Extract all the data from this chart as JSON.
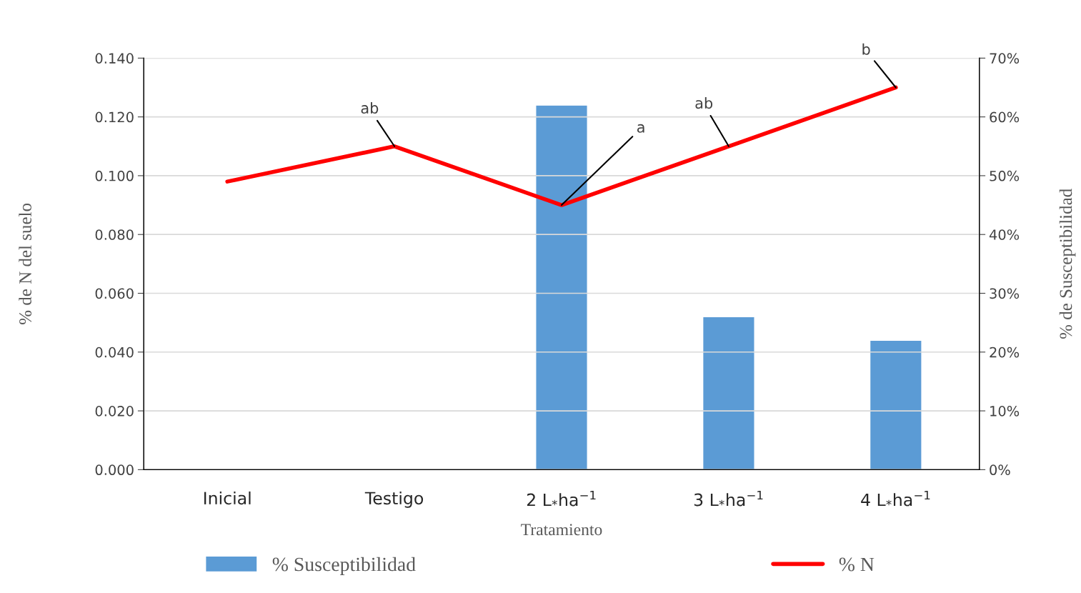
{
  "chart_data": {
    "type": "bar",
    "xlabel": "Tratamiento",
    "ylabel": "% de N del suelo",
    "y2label": "% de Susceptibilidad",
    "categories": [
      "Inicial",
      "Testigo",
      "2 L$_{*}$ha$^{−1}$",
      "3 L$_{*}$ha$^{−1}$",
      "4 L$_{*}$ha$^{−1}$"
    ],
    "series": [
      {
        "name": "% Susceptibilidad",
        "axis": "y2",
        "color": "#5b9bd5",
        "values": [
          null,
          null,
          62,
          26,
          22
        ]
      },
      {
        "name": "% N",
        "type": "line",
        "color": "#ff0000",
        "values": [
          0.098,
          0.11,
          0.09,
          0.11,
          0.13
        ]
      }
    ],
    "ylim": [
      0,
      0.14
    ],
    "yticks": [
      {
        "value": 0,
        "label": "0.000"
      },
      {
        "value": 0.02,
        "label": "0.020"
      },
      {
        "value": 0.04,
        "label": "0.040"
      },
      {
        "value": 0.06,
        "label": "0.060"
      },
      {
        "value": 0.08,
        "label": "0.080"
      },
      {
        "value": 0.1,
        "label": "0.100"
      },
      {
        "value": 0.12,
        "label": "0.120"
      },
      {
        "value": 0.14,
        "label": "0.140"
      }
    ],
    "y2lim": [
      0,
      70
    ],
    "y2ticks": [
      {
        "value": 0,
        "label": "0%"
      },
      {
        "value": 10,
        "label": "10%"
      },
      {
        "value": 20,
        "label": "20%"
      },
      {
        "value": 30,
        "label": "30%"
      },
      {
        "value": 40,
        "label": "40%"
      },
      {
        "value": 50,
        "label": "50%"
      },
      {
        "value": 60,
        "label": "60%"
      },
      {
        "value": 70,
        "label": "70%"
      }
    ],
    "annotations": [
      {
        "text": "ab",
        "x": "Testigo",
        "y": 0.11
      },
      {
        "text": "a",
        "x": "2 L$_{*}$ha$^{−1}$",
        "y": 0.09
      },
      {
        "text": "ab",
        "x": "3 L$_{*}$ha$^{−1}$",
        "y": 0.11
      },
      {
        "text": "b",
        "x": "4 L$_{*}$ha$^{−1}$",
        "y": 0.13
      }
    ],
    "grid": "y",
    "legend": "bottom"
  }
}
